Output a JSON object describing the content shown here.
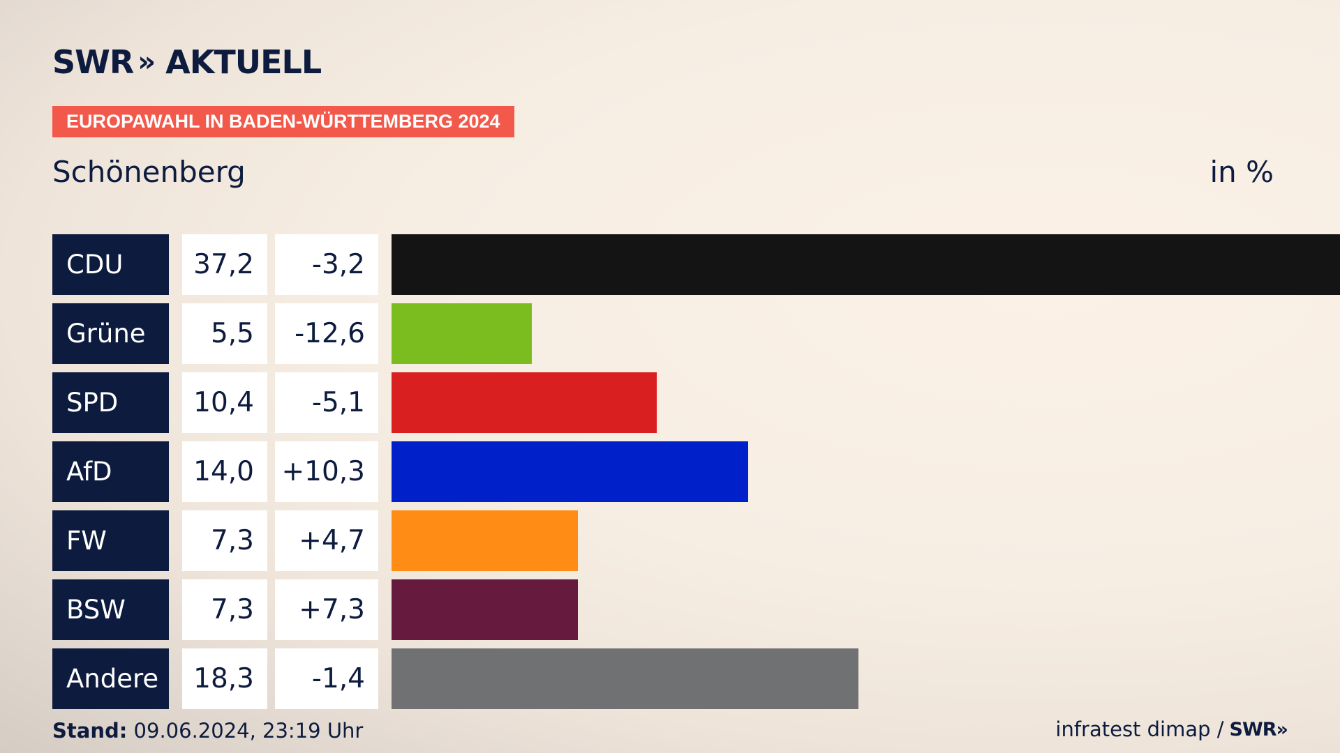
{
  "brand": {
    "logo_text": "SWR",
    "logo_chevrons": "»",
    "logo_suffix": "AKTUELL"
  },
  "banner": {
    "text": "EUROPAWAHL IN BADEN-WÜRTTEMBERG 2024"
  },
  "place": "Schönenberg",
  "unit": "in %",
  "footer": {
    "stand_label": "Stand:",
    "stand_value": "09.06.2024, 23:19 Uhr",
    "source": "infratest dimap /",
    "source_logo": "SWR»"
  },
  "chart_data": {
    "type": "bar",
    "orientation": "horizontal",
    "categories": [
      "CDU",
      "Grüne",
      "SPD",
      "AfD",
      "FW",
      "BSW",
      "Andere"
    ],
    "values": [
      37.2,
      5.5,
      10.4,
      14.0,
      7.3,
      7.3,
      18.3
    ],
    "values_text": [
      "37,2",
      "5,5",
      "10,4",
      "14,0",
      "7,3",
      "7,3",
      "18,3"
    ],
    "changes_text": [
      "-3,2",
      "-12,6",
      "-5,1",
      "+10,3",
      "+4,7",
      "+7,3",
      "-1,4"
    ],
    "colors": [
      "#141414",
      "#7bbd1e",
      "#d91f1f",
      "#0021c9",
      "#ff8c14",
      "#661a3d",
      "#707173"
    ],
    "xlim": [
      0,
      37.2
    ]
  }
}
